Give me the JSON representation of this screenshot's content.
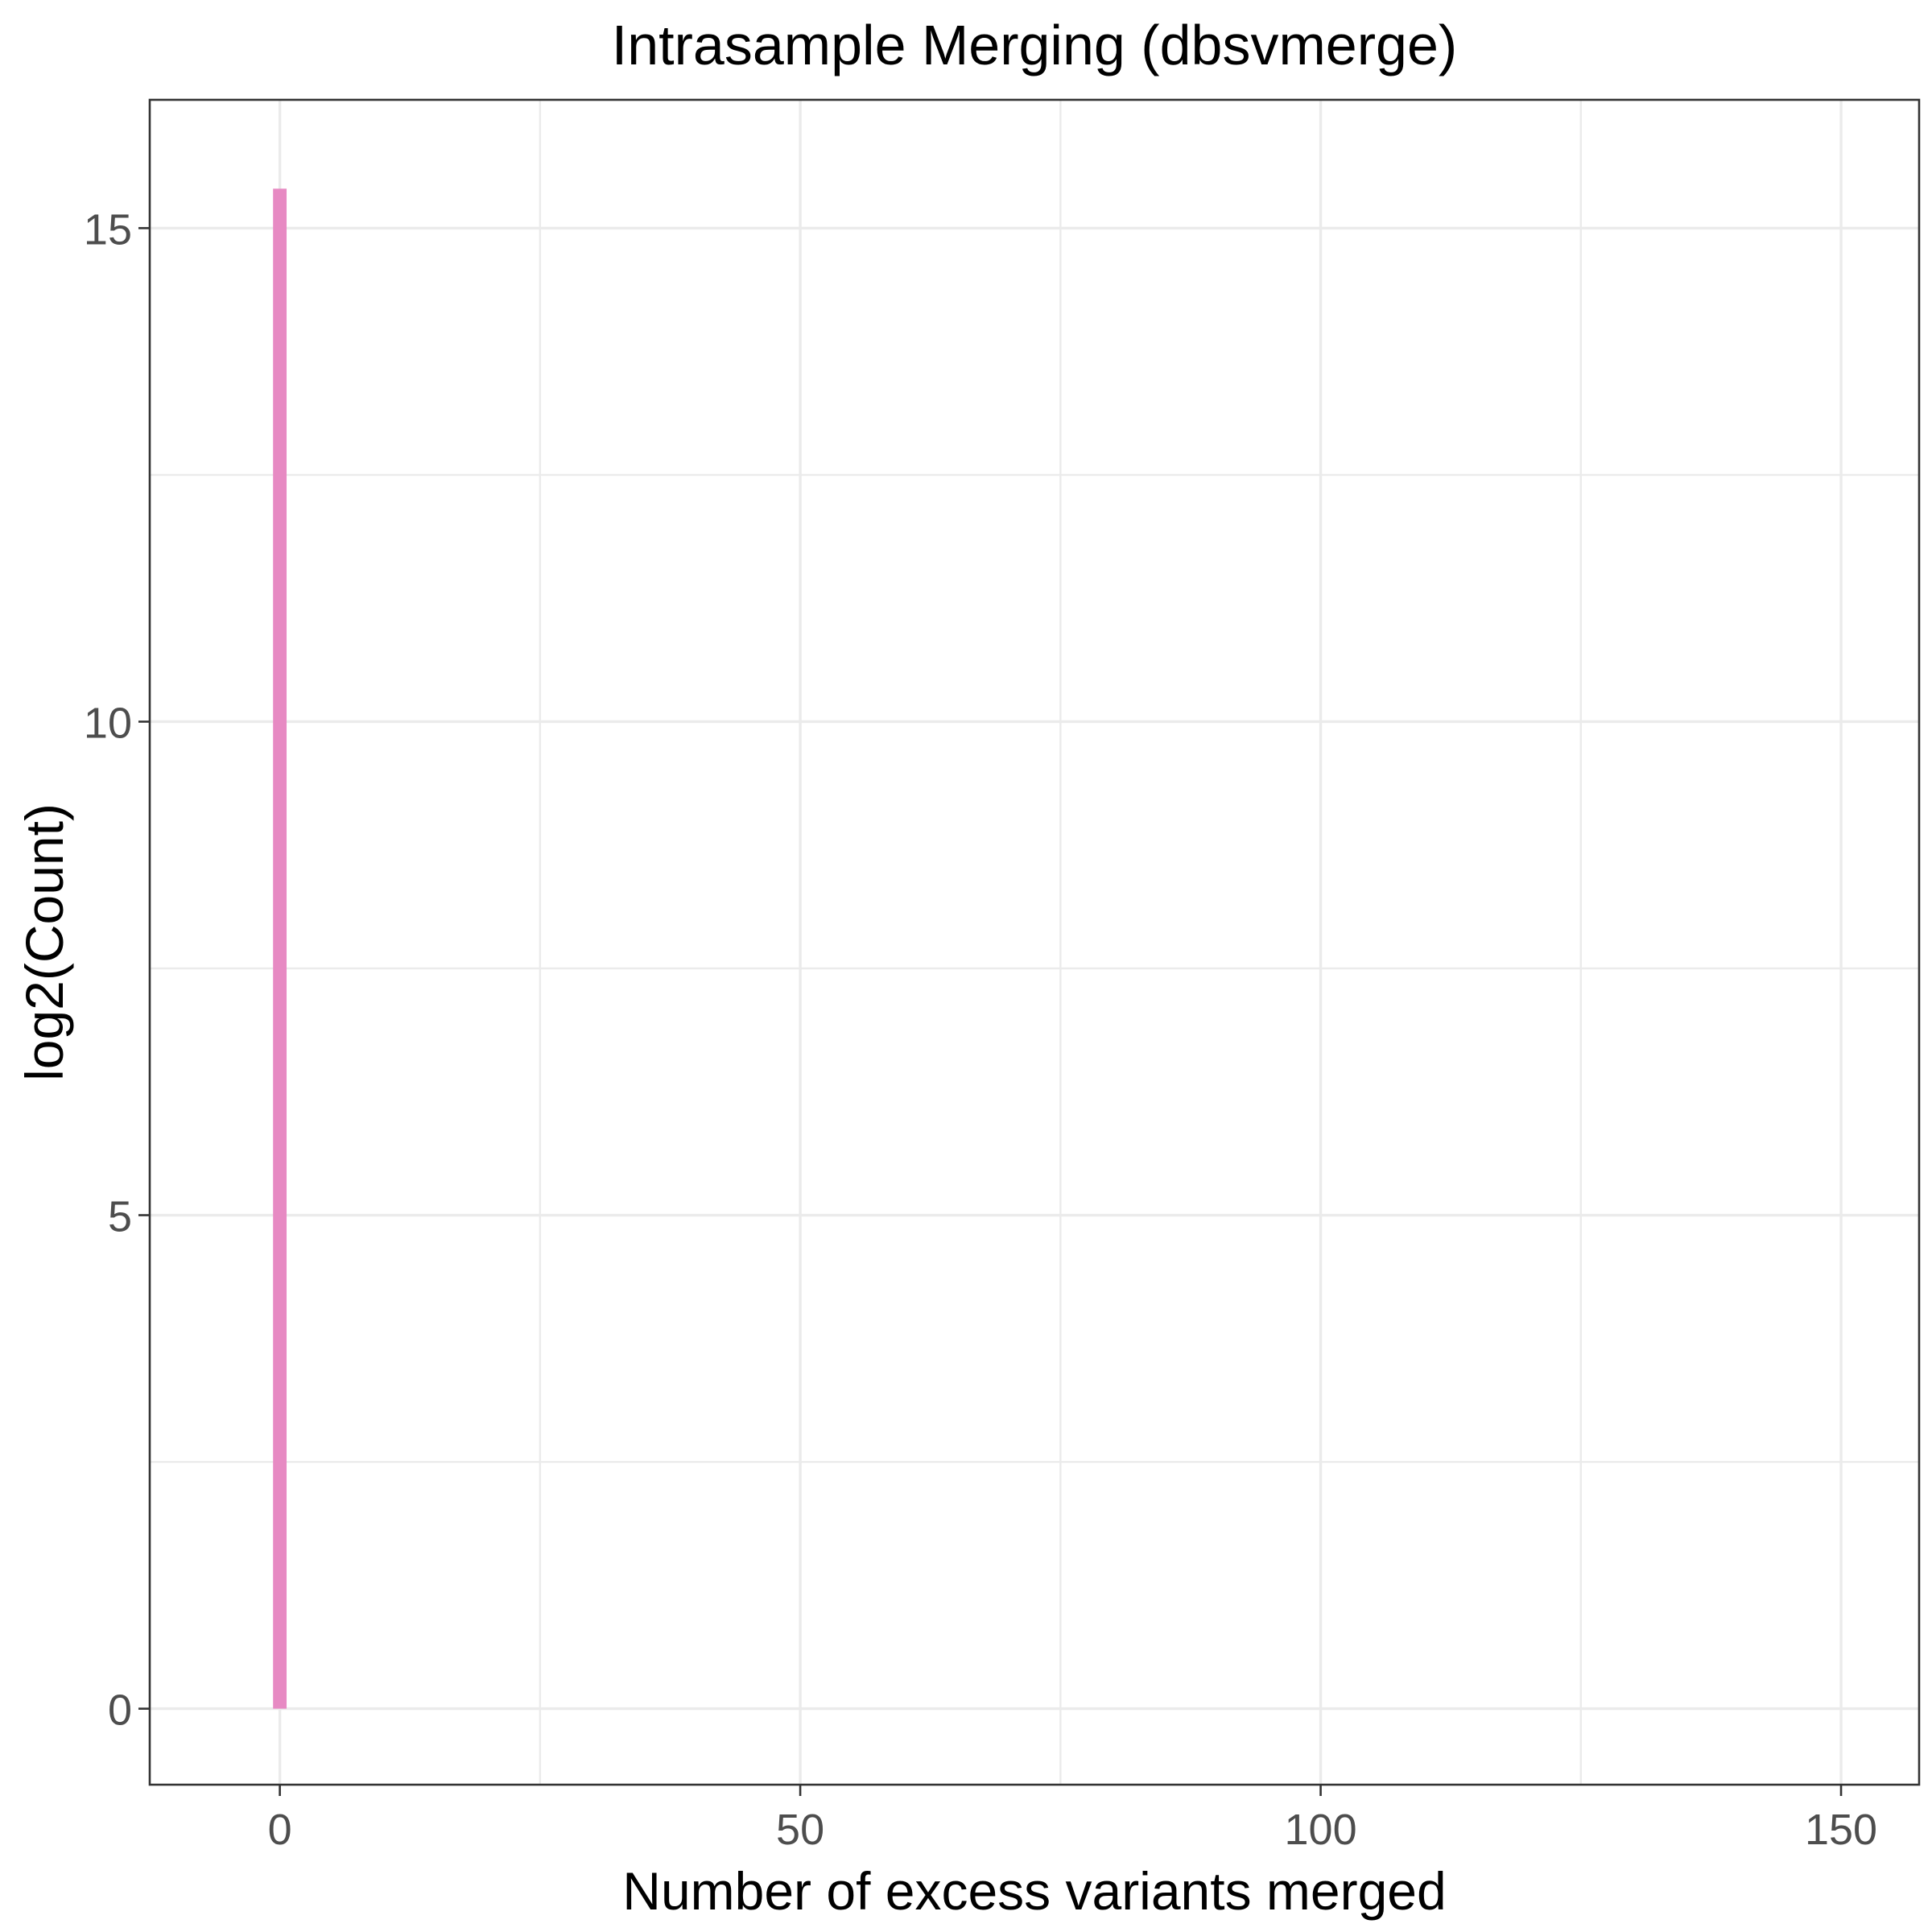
{
  "chart_data": {
    "type": "bar",
    "title": "Intrasample Merging (dbsvmerge)",
    "xlabel": "Number of excess variants merged",
    "ylabel": "log2(Count)",
    "x": [
      0
    ],
    "values": [
      15.4
    ],
    "bar_color": "#e78ac3",
    "xlim": [
      -12.5,
      157.5
    ],
    "ylim": [
      -0.77,
      16.3
    ],
    "x_ticks": [
      0,
      50,
      100,
      150
    ],
    "x_tick_labels": [
      "0",
      "50",
      "100",
      "150"
    ],
    "y_ticks": [
      0,
      5,
      10,
      15
    ],
    "y_tick_labels": [
      "0",
      "5",
      "10",
      "15"
    ],
    "x_minor_ticks": [
      25,
      75,
      125
    ],
    "y_minor_ticks": [
      2.5,
      7.5,
      12.5
    ],
    "grid": true,
    "legend": "none"
  }
}
